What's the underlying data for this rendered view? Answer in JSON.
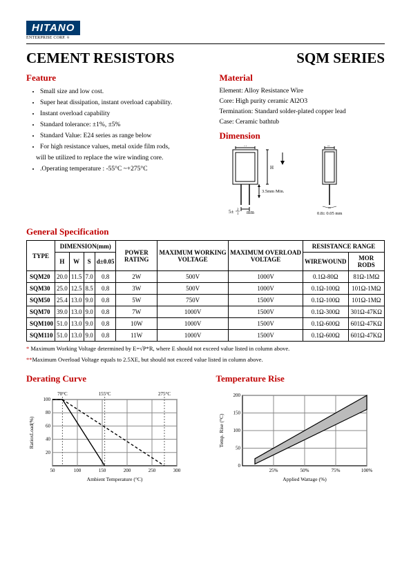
{
  "logo": {
    "name": "HITANO",
    "sub": "ENTERPRISE CORP.",
    "reg": "®"
  },
  "titles": {
    "left": "CEMENT RESISTORS",
    "right": "SQM SERIES"
  },
  "feature": {
    "heading": "Feature",
    "items": [
      "Small size and low cost.",
      "Super heat dissipation, instant overload capability.",
      "Instant overload capability",
      "Standard tolerance: ±1%, ±5%",
      "Standard Value: E24 series as range below",
      "For high resistance values, metal oxide film rods,",
      "will be utilized to replace the wire winding core.",
      ".Operating temperature : -55°C ~+275°C"
    ]
  },
  "material": {
    "heading": "Material",
    "lines": [
      "Element: Alloy Resistance Wire",
      "Core: High purity ceramic Al2O3",
      "Termination: Standard solder-plated copper lead",
      "Case: Ceramic bathtub"
    ]
  },
  "dimension": {
    "heading": "Dimension",
    "labels": {
      "W": "W",
      "H": "H",
      "S": "S",
      "min": "3.5mm Min.",
      "tol1": "5±",
      "tol1_num": "2",
      "tol1_den": "1",
      "mm": "mm",
      "lead": "0.8± 0.05 mm"
    }
  },
  "genspec_heading": "General Specification",
  "spec_headers": {
    "type": "TYPE",
    "dim": "DIMENSION(mm)",
    "H": "H",
    "W": "W",
    "S": "S",
    "d": "d±0.05",
    "power": "POWER RATING",
    "maxwork": "MAXIMUM WORKING VOLTAGE",
    "maxover": "MAXIMUM OVERLOAD VOLTAGE",
    "rr": "RESISTANCE RANGE",
    "ww": "WIREWOUND",
    "mor": "MOR RODS"
  },
  "spec_rows": [
    {
      "t": "SQM20",
      "h": "20.0",
      "w": "11.5",
      "s": "7.0",
      "d": "0.8",
      "p": "2W",
      "mw": "500V",
      "mo": "1000V",
      "ww": "0.1Ω-80Ω",
      "mor": "81Ω-1MΩ"
    },
    {
      "t": "SQM30",
      "h": "25.0",
      "w": "12.5",
      "s": "8.5",
      "d": "0.8",
      "p": "3W",
      "mw": "500V",
      "mo": "1000V",
      "ww": "0.1Ω-100Ω",
      "mor": "101Ω-1MΩ"
    },
    {
      "t": "SQM50",
      "h": "25.4",
      "w": "13.0",
      "s": "9.0",
      "d": "0.8",
      "p": "5W",
      "mw": "750V",
      "mo": "1500V",
      "ww": "0.1Ω-100Ω",
      "mor": "101Ω-1MΩ"
    },
    {
      "t": "SQM70",
      "h": "39.0",
      "w": "13.0",
      "s": "9.0",
      "d": "0.8",
      "p": "7W",
      "mw": "1000V",
      "mo": "1500V",
      "ww": "0.1Ω-300Ω",
      "mor": "301Ω-47KΩ"
    },
    {
      "t": "SQM100",
      "h": "51.0",
      "w": "13.0",
      "s": "9.0",
      "d": "0.8",
      "p": "10W",
      "mw": "1000V",
      "mo": "1500V",
      "ww": "0.1Ω-600Ω",
      "mor": "601Ω-47KΩ"
    },
    {
      "t": "SQM110",
      "h": "51.0",
      "w": "13.0",
      "s": "9.0",
      "d": "0.8",
      "p": "11W",
      "mw": "1000V",
      "mo": "1500V",
      "ww": "0.1Ω-600Ω",
      "mor": "601Ω-47KΩ"
    }
  ],
  "notes": {
    "n1_prefix": "*",
    "n1": " Maximum Working Voltage determined by E=√P*R, where E should not exceed value listed in column above.",
    "n2_prefix": "**",
    "n2": "Maximum Overload Voltage equals to 2.5XE, but should not exceed value listed in column above."
  },
  "derating": {
    "heading": "Derating Curve",
    "ylabel": "RatioxLoad(%)",
    "xlabel": "Ambient Temperature (°C)",
    "ylim": [
      0,
      100
    ],
    "yticks": [
      20,
      40,
      60,
      80,
      100
    ],
    "xlim": [
      50,
      300
    ],
    "xticks": [
      50,
      100,
      150,
      200,
      250,
      300
    ],
    "annot": [
      {
        "x": 70,
        "label": "70°C"
      },
      {
        "x": 155,
        "label": "155°C"
      },
      {
        "x": 275,
        "label": "275°C"
      }
    ],
    "line1": [
      [
        50,
        100
      ],
      [
        70,
        100
      ],
      [
        155,
        0
      ]
    ],
    "line2": [
      [
        50,
        100
      ],
      [
        70,
        100
      ],
      [
        275,
        0
      ]
    ],
    "grid_color": "#888",
    "bg": "#fff",
    "line_color": "#000"
  },
  "temprise": {
    "heading": "Temperature Rise",
    "ylabel": "Temp. Rise (°C)",
    "xlabel": "Applied Wattage  (%)",
    "ylim": [
      0,
      200
    ],
    "yticks": [
      50,
      100,
      150,
      200
    ],
    "xlim": [
      0,
      100
    ],
    "xticks": [
      25,
      50,
      75,
      100
    ],
    "band_upper": [
      [
        10,
        20
      ],
      [
        100,
        200
      ]
    ],
    "band_lower": [
      [
        10,
        5
      ],
      [
        100,
        160
      ]
    ],
    "grid_color": "#888",
    "fill": "#bbb",
    "line_color": "#000"
  }
}
